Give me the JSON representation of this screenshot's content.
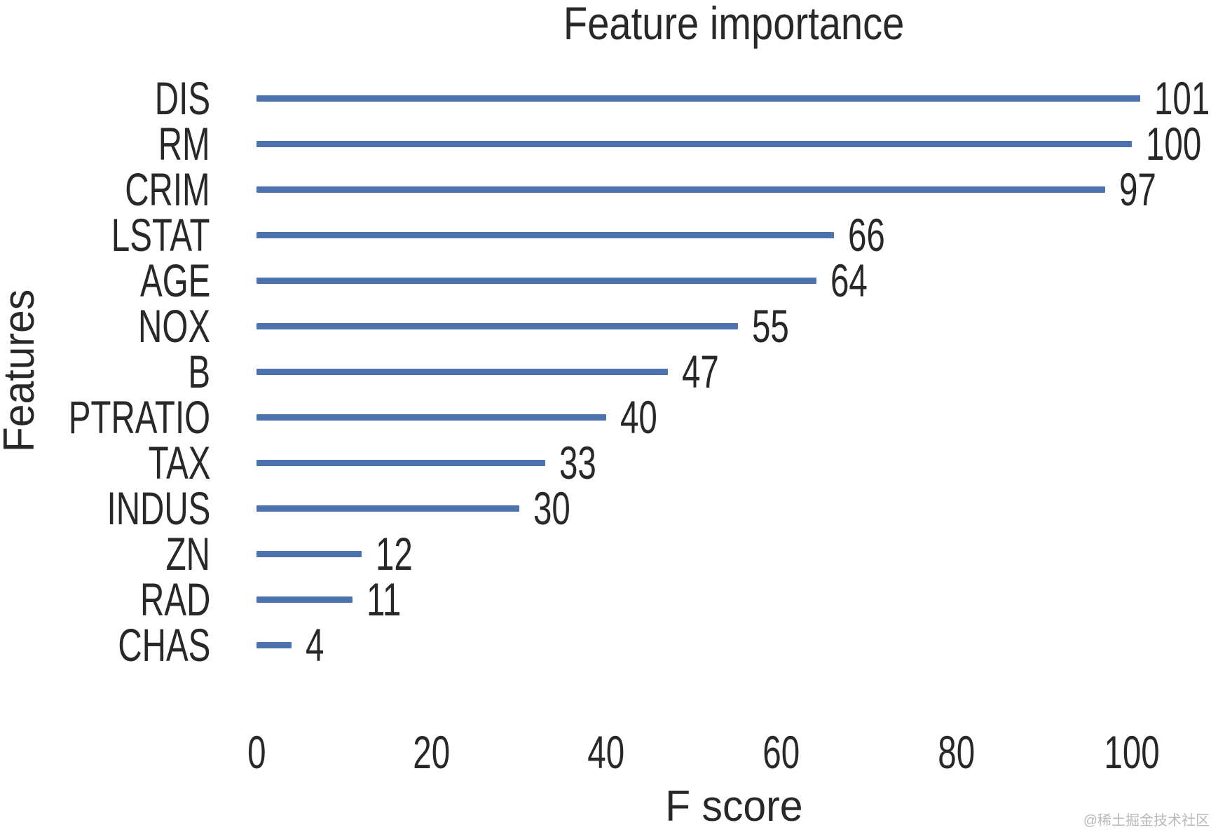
{
  "chart_data": {
    "type": "bar",
    "orientation": "horizontal",
    "title": "Feature importance",
    "xlabel": "F score",
    "ylabel": "Features",
    "categories": [
      "DIS",
      "RM",
      "CRIM",
      "LSTAT",
      "AGE",
      "NOX",
      "B",
      "PTRATIO",
      "TAX",
      "INDUS",
      "ZN",
      "RAD",
      "CHAS"
    ],
    "values": [
      101,
      100,
      97,
      66,
      64,
      55,
      47,
      40,
      33,
      30,
      12,
      11,
      4
    ],
    "x_ticks": [
      0,
      20,
      40,
      60,
      80,
      100
    ],
    "xlim": [
      0,
      109
    ],
    "grid": false,
    "legend": "none",
    "value_labels_shown": true,
    "bar_color": "#4d72b0",
    "text_color": "#282828"
  },
  "watermark": "@稀土掘金技术社区"
}
